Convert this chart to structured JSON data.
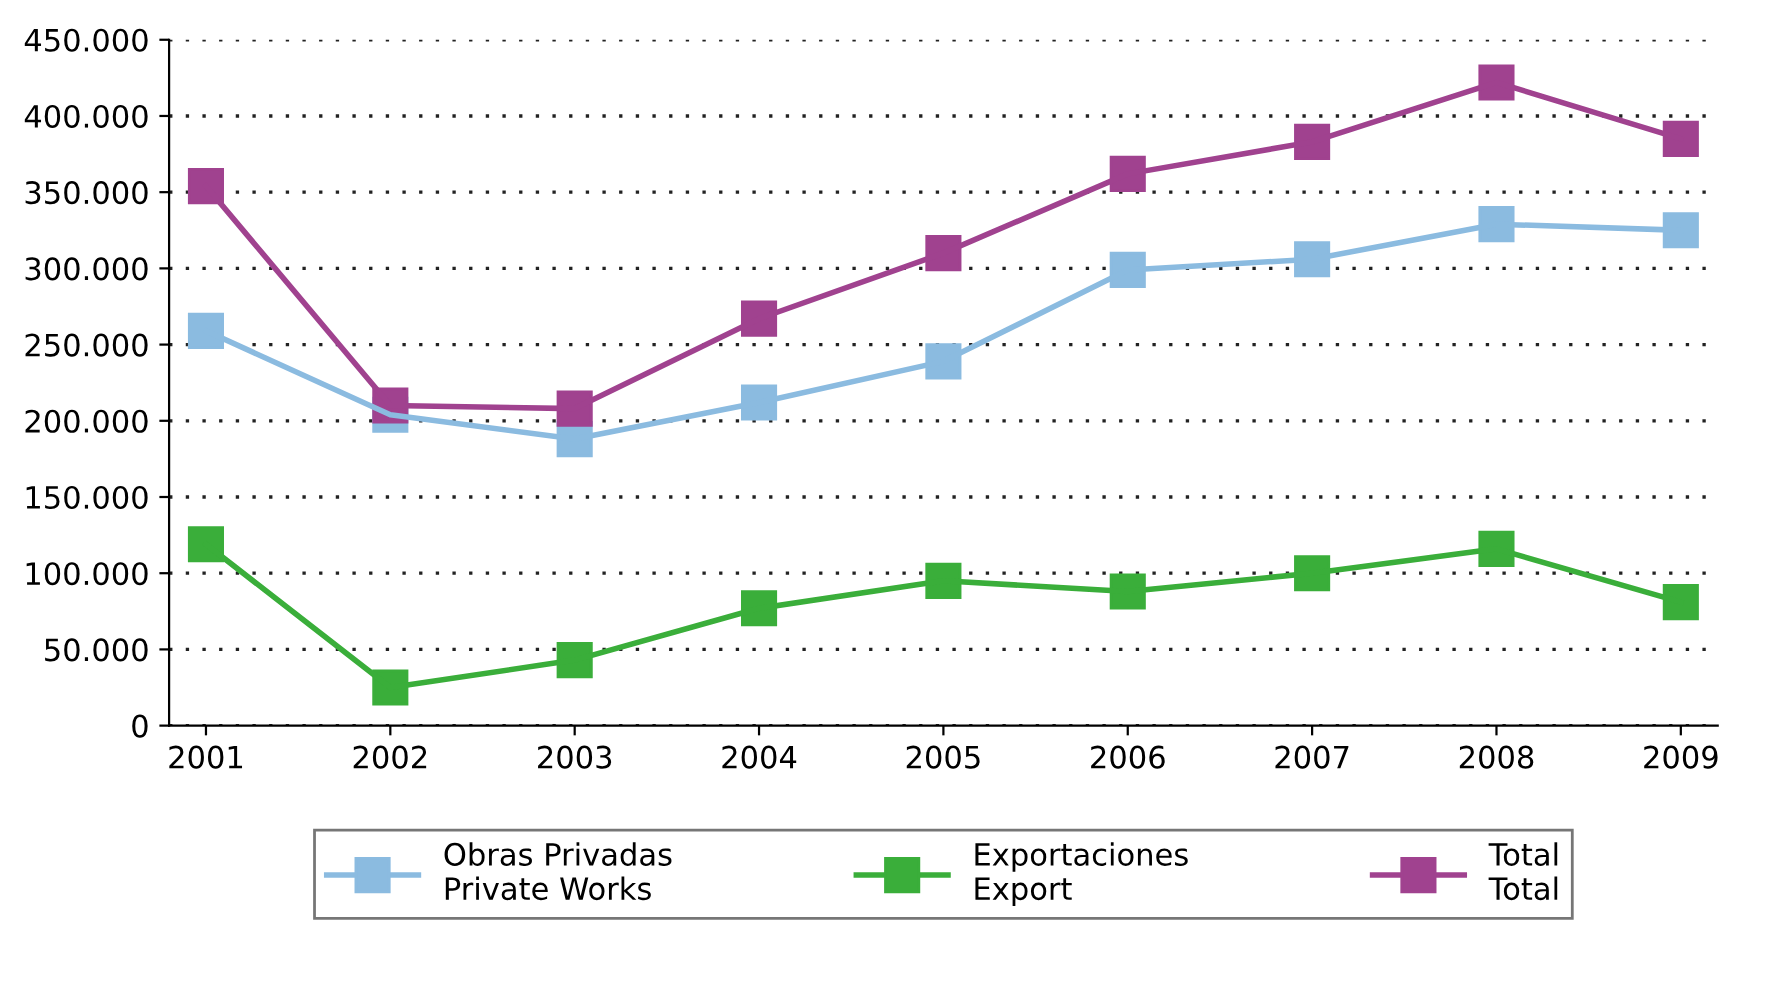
{
  "chart_data": {
    "type": "line",
    "categories": [
      "2001",
      "2002",
      "2003",
      "2004",
      "2005",
      "2006",
      "2007",
      "2008",
      "2009"
    ],
    "series": [
      {
        "name": "Obras Privadas\nPrivate Works",
        "color": "#8bbbe0",
        "values": [
          259000,
          204000,
          188000,
          212000,
          239000,
          299000,
          306000,
          329000,
          325000
        ]
      },
      {
        "name": "Exportaciones\nExport",
        "color": "#3aae3a",
        "values": [
          119000,
          25000,
          43000,
          77000,
          95000,
          88000,
          100000,
          116000,
          81000
        ]
      },
      {
        "name": "Total\nTotal",
        "color": "#a0428f",
        "values": [
          354000,
          210000,
          208000,
          267000,
          310000,
          362000,
          383000,
          422000,
          385000
        ]
      }
    ],
    "ylim": [
      0,
      450000
    ],
    "yticks": [
      {
        "value": 0,
        "label": "0"
      },
      {
        "value": 50000,
        "label": "50.000"
      },
      {
        "value": 100000,
        "label": "100.000"
      },
      {
        "value": 150000,
        "label": "150.000"
      },
      {
        "value": 200000,
        "label": "200.000"
      },
      {
        "value": 250000,
        "label": "250.000"
      },
      {
        "value": 300000,
        "label": "300.000"
      },
      {
        "value": 350000,
        "label": "350.000"
      },
      {
        "value": 400000,
        "label": "400.000"
      },
      {
        "value": 450000,
        "label": "450.000"
      }
    ],
    "grid": "y",
    "legend": "bottom",
    "marker": "square",
    "line_style": "solid"
  }
}
